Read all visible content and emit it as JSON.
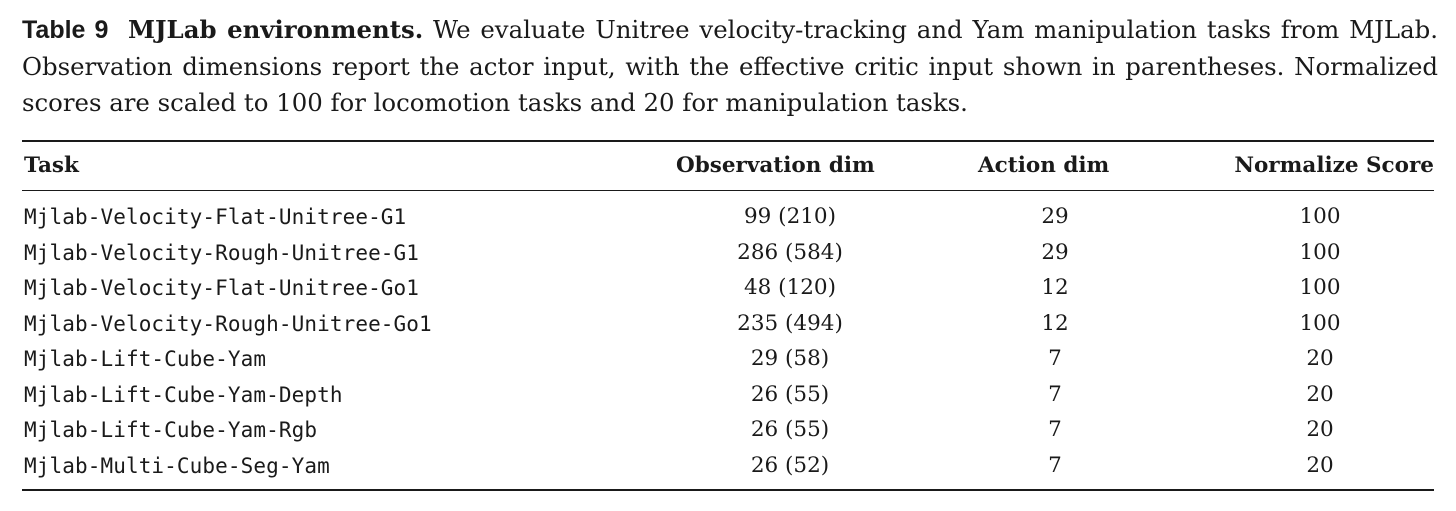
{
  "caption": {
    "label": "Table 9",
    "title": "MJLab environments.",
    "text": "We evaluate Unitree velocity-tracking and Yam manipulation tasks from MJLab. Observation dimensions report the actor input, with the effective critic input shown in parentheses. Normalized scores are scaled to 100 for locomotion tasks and 20 for manipulation tasks."
  },
  "table": {
    "headers": {
      "task": "Task",
      "observation_dim": "Observation dim",
      "action_dim": "Action dim",
      "normalize_score": "Normalize Score"
    },
    "rows": [
      {
        "task": "Mjlab-Velocity-Flat-Unitree-G1",
        "observation_dim": "99 (210)",
        "action_dim": "29",
        "normalize_score": "100"
      },
      {
        "task": "Mjlab-Velocity-Rough-Unitree-G1",
        "observation_dim": "286 (584)",
        "action_dim": "29",
        "normalize_score": "100"
      },
      {
        "task": "Mjlab-Velocity-Flat-Unitree-Go1",
        "observation_dim": "48 (120)",
        "action_dim": "12",
        "normalize_score": "100"
      },
      {
        "task": "Mjlab-Velocity-Rough-Unitree-Go1",
        "observation_dim": "235 (494)",
        "action_dim": "12",
        "normalize_score": "100"
      },
      {
        "task": "Mjlab-Lift-Cube-Yam",
        "observation_dim": "29 (58)",
        "action_dim": "7",
        "normalize_score": "20"
      },
      {
        "task": "Mjlab-Lift-Cube-Yam-Depth",
        "observation_dim": "26 (55)",
        "action_dim": "7",
        "normalize_score": "20"
      },
      {
        "task": "Mjlab-Lift-Cube-Yam-Rgb",
        "observation_dim": "26 (55)",
        "action_dim": "7",
        "normalize_score": "20"
      },
      {
        "task": "Mjlab-Multi-Cube-Seg-Yam",
        "observation_dim": "26 (52)",
        "action_dim": "7",
        "normalize_score": "20"
      }
    ]
  }
}
